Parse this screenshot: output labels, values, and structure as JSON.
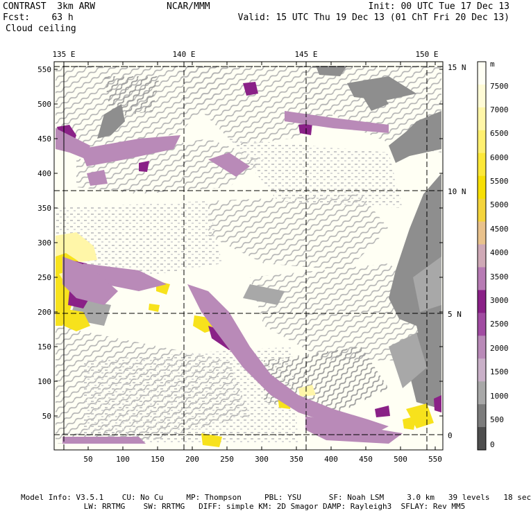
{
  "header": {
    "left_line1": "CONTRAST  3km ARW",
    "left_line2": "Fcst:    63 h",
    "field_name": "Cloud ceiling",
    "center": "NCAR/MMM",
    "init": "Init: 00 UTC Tue 17 Dec 13",
    "valid": "Valid: 15 UTC Thu 19 Dec 13 (01 ChT Fri 20 Dec 13)"
  },
  "map": {
    "lon_labels": [
      "135 E",
      "140 E",
      "145 E",
      "150 E"
    ],
    "lat_labels": [
      "15 N",
      "10 N",
      "5 N",
      "0"
    ],
    "x_ticks": [
      "50",
      "100",
      "150",
      "200",
      "250",
      "300",
      "350",
      "400",
      "450",
      "500",
      "550"
    ],
    "y_ticks": [
      "50",
      "100",
      "150",
      "200",
      "250",
      "300",
      "350",
      "400",
      "450",
      "500",
      "550"
    ]
  },
  "colorbar": {
    "unit": "m",
    "labels": [
      "7500",
      "7000",
      "6500",
      "6000",
      "5500",
      "5000",
      "4500",
      "4000",
      "3500",
      "3000",
      "2500",
      "2000",
      "1500",
      "1000",
      "500",
      "0"
    ],
    "colors": [
      "#fffff4",
      "#fffbd6",
      "#fff6a8",
      "#fff070",
      "#fde838",
      "#f7df05",
      "#f4d43c",
      "#e9c28c",
      "#cfa9b6",
      "#b77bb4",
      "#8a2187",
      "#a14ca2",
      "#b98ab8",
      "#c9b0c8",
      "#a8a8a8",
      "#7c7c7c",
      "#4e4e4e"
    ]
  },
  "footer": {
    "line1": "Model Info: V3.5.1    CU: No Cu     MP: Thompson     PBL: YSU      SF: Noah LSM     3.0 km   39 levels   18 sec",
    "line2": "                 LW: RRTMG    SW: RRTMG   DIFF: simple KM: 2D Smagor DAMP: Rayleigh3  SFLAY: Rev MM5"
  }
}
